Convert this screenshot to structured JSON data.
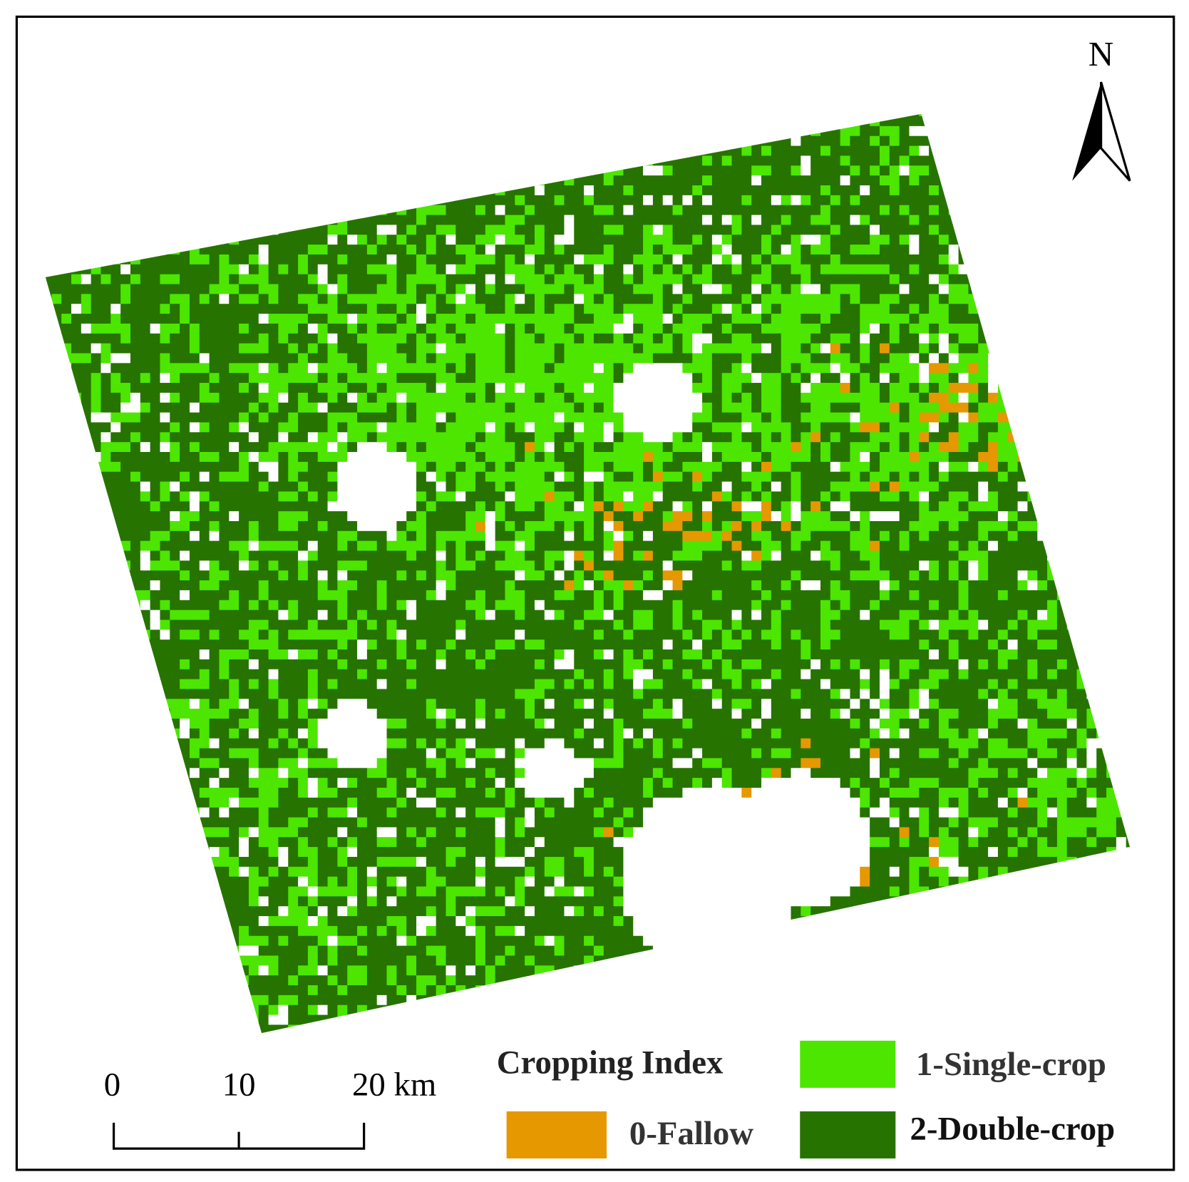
{
  "north_arrow": {
    "label": "N"
  },
  "legend": {
    "title": "Cropping Index",
    "items": [
      {
        "label": "1-Single-crop",
        "color": "#4ce600"
      },
      {
        "label": "0-Fallow",
        "color": "#e69800"
      },
      {
        "label": "2-Double-crop",
        "color": "#267300"
      }
    ]
  },
  "scale_bar": {
    "labels": [
      "0",
      "10",
      "20 km"
    ]
  }
}
